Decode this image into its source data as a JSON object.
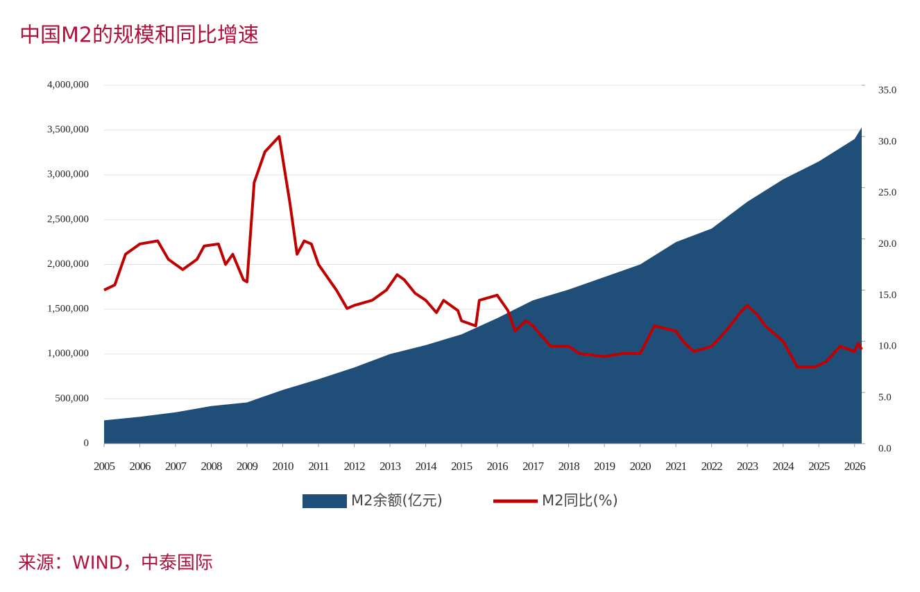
{
  "chart_data": {
    "type": "area-line",
    "title": "中国M2的规模和同比增速",
    "source": "来源：WIND，中泰国际",
    "xlim": [
      2005,
      2026.2
    ],
    "xticks": [
      2005,
      2006,
      2007,
      2008,
      2009,
      2010,
      2011,
      2012,
      2013,
      2014,
      2015,
      2016,
      2017,
      2018,
      2019,
      2020,
      2021,
      2022,
      2023,
      2024,
      2025,
      2026
    ],
    "ylim": [
      0,
      4000000
    ],
    "yticks": [
      0,
      {
        "value": 500000,
        "label": "500,000"
      },
      {
        "value": 1000000,
        "label": "1,000,000"
      },
      {
        "value": 1500000,
        "label": "1,500,000"
      },
      {
        "value": 2000000,
        "label": "2,000,000"
      },
      {
        "value": 2500000,
        "label": "2,500,000"
      },
      {
        "value": 3000000,
        "label": "3,000,000"
      },
      {
        "value": 3500000,
        "label": "3,500,000"
      },
      {
        "value": 4000000,
        "label": "4,000,000"
      }
    ],
    "y2lim": [
      0,
      35
    ],
    "y2ticks": [
      {
        "value": 0,
        "label": "0.0"
      },
      {
        "value": 5,
        "label": "5.0"
      },
      {
        "value": 10,
        "label": "10.0"
      },
      {
        "value": 15,
        "label": "15.0"
      },
      {
        "value": 20,
        "label": "20.0"
      },
      {
        "value": 25,
        "label": "25.0"
      },
      {
        "value": 30,
        "label": "30.0"
      },
      {
        "value": 35,
        "label": "35.0"
      }
    ],
    "grid": true,
    "series": [
      {
        "name": "M2余额(亿元)",
        "color": "#1f4e79",
        "kind": "area",
        "x": [
          2005,
          2006,
          2007,
          2008,
          2009,
          2010,
          2011,
          2012,
          2013,
          2014,
          2015,
          2016,
          2017,
          2018,
          2019,
          2020,
          2021,
          2022,
          2023,
          2024,
          2025,
          2026,
          2026.2
        ],
        "values": [
          260000,
          300000,
          350000,
          420000,
          460000,
          600000,
          720000,
          850000,
          1000000,
          1100000,
          1220000,
          1400000,
          1600000,
          1720000,
          1860000,
          2000000,
          2250000,
          2400000,
          2700000,
          2950000,
          3150000,
          3400000,
          3530000
        ]
      },
      {
        "name": "M2同比(%)",
        "color": "#c00000",
        "kind": "line",
        "axis": "y2",
        "x": [
          2005,
          2005.3,
          2005.6,
          2006,
          2006.5,
          2006.8,
          2007.2,
          2007.6,
          2007.8,
          2008.2,
          2008.4,
          2008.6,
          2008.9,
          2009,
          2009.2,
          2009.5,
          2009.9,
          2010.2,
          2010.4,
          2010.6,
          2010.8,
          2011,
          2011.5,
          2011.8,
          2012,
          2012.5,
          2012.9,
          2013.2,
          2013.4,
          2013.7,
          2014,
          2014.3,
          2014.5,
          2014.9,
          2015,
          2015.4,
          2015.5,
          2016,
          2016.3,
          2016.5,
          2016.8,
          2017,
          2017.5,
          2018,
          2018.3,
          2019,
          2019.5,
          2020,
          2020.4,
          2021,
          2021.2,
          2021.5,
          2022,
          2022.4,
          2022.8,
          2023,
          2023.3,
          2023.5,
          2024,
          2024.4,
          2024.9,
          2025.2,
          2025.6,
          2026,
          2026.1,
          2026.2
        ],
        "values": [
          15,
          15.5,
          18.5,
          19.5,
          19.8,
          18,
          17,
          18,
          19.3,
          19.5,
          17.5,
          18.5,
          16,
          15.8,
          25.5,
          28.5,
          30,
          23.5,
          18.5,
          19.8,
          19.5,
          17.5,
          15,
          13.2,
          13.5,
          14,
          15,
          16.5,
          16,
          14.7,
          14,
          12.8,
          14,
          13,
          12,
          11.5,
          14,
          14.5,
          13,
          11,
          12,
          11.5,
          9.5,
          9.5,
          8.8,
          8.5,
          8.8,
          8.8,
          11.5,
          11,
          10,
          9,
          9.5,
          11,
          12.8,
          13.5,
          12.5,
          11.5,
          10,
          7.5,
          7.5,
          8,
          9.5,
          9,
          9.8,
          9.2
        ]
      }
    ]
  }
}
